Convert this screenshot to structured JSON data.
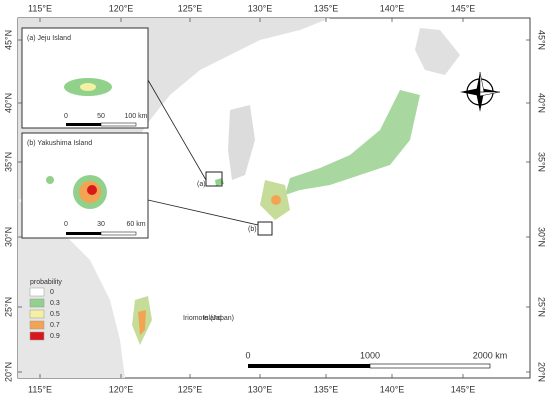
{
  "map": {
    "lon_ticks": [
      "115°E",
      "120°E",
      "125°E",
      "130°E",
      "135°E",
      "140°E",
      "145°E"
    ],
    "lat_ticks": [
      "45°N",
      "40°N",
      "35°N",
      "30°N",
      "25°N",
      "20°N"
    ],
    "inset_a": {
      "title": "(a) Jeju Island",
      "scale": [
        "0",
        "50",
        "100 km"
      ],
      "marker": "(a)"
    },
    "inset_b": {
      "title": "(b) Yakushima Island",
      "scale": [
        "0",
        "30",
        "60 km"
      ],
      "marker": "(b)"
    },
    "legend": {
      "title": "probability",
      "entries": [
        {
          "label": "0",
          "color": "#ffffff"
        },
        {
          "label": "0.3",
          "color": "#92d18c"
        },
        {
          "label": "0.5",
          "color": "#f4f0a4"
        },
        {
          "label": "0.7",
          "color": "#f2a453"
        },
        {
          "label": "0.9",
          "color": "#d7191c"
        }
      ]
    },
    "annotations": {
      "iriomote": "Iriomote (Japan)",
      "island": "Island"
    },
    "scale_bar": [
      "0",
      "1000",
      "2000 km"
    ]
  }
}
